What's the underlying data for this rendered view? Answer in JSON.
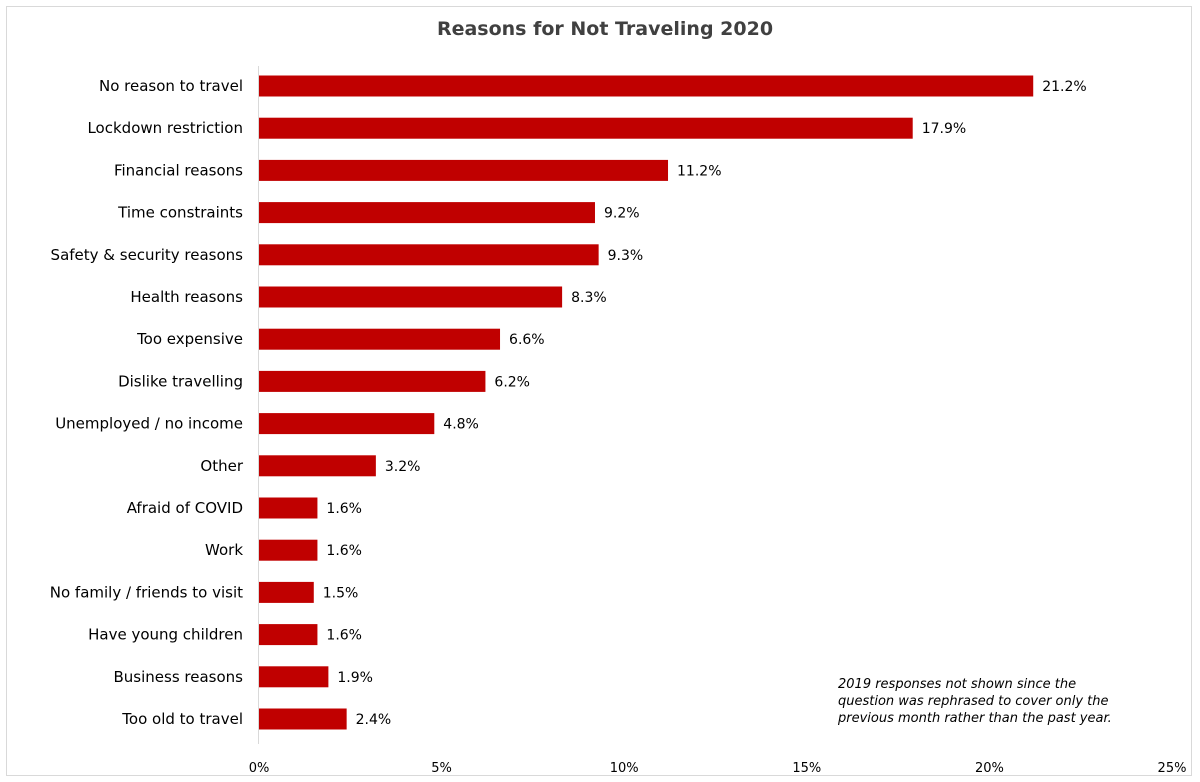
{
  "chart_data": {
    "type": "bar",
    "orientation": "horizontal",
    "title": "Reasons for Not Traveling 2020",
    "categories": [
      "No reason to travel",
      "Lockdown restriction",
      "Financial reasons",
      "Time constraints",
      "Safety & security reasons",
      "Health reasons",
      "Too expensive",
      "Dislike travelling",
      "Unemployed / no income",
      "Other",
      "Afraid of COVID",
      "Work",
      "No family / friends to visit",
      "Have young children",
      "Business reasons",
      "Too old to travel"
    ],
    "values": [
      21.2,
      17.9,
      11.2,
      9.2,
      9.3,
      8.3,
      6.6,
      6.2,
      4.8,
      3.2,
      1.6,
      1.6,
      1.5,
      1.6,
      1.9,
      2.4
    ],
    "value_labels": [
      "21.2%",
      "17.9%",
      "11.2%",
      "9.2%",
      "9.3%",
      "8.3%",
      "6.6%",
      "6.2%",
      "4.8%",
      "3.2%",
      "1.6%",
      "1.6%",
      "1.5%",
      "1.6%",
      "1.9%",
      "2.4%"
    ],
    "xlim": [
      0,
      25
    ],
    "x_ticks": [
      0,
      5,
      10,
      15,
      20,
      25
    ],
    "x_tick_labels": [
      "0%",
      "5%",
      "10%",
      "15%",
      "20%",
      "25%"
    ],
    "bar_color": "#c00000",
    "grid": false,
    "legend": "none",
    "xlabel": "",
    "ylabel": ""
  },
  "note": {
    "line1": "2019 responses not shown since the",
    "line2": "question was rephrased to cover only the",
    "line3": "previous month rather than the past year."
  }
}
